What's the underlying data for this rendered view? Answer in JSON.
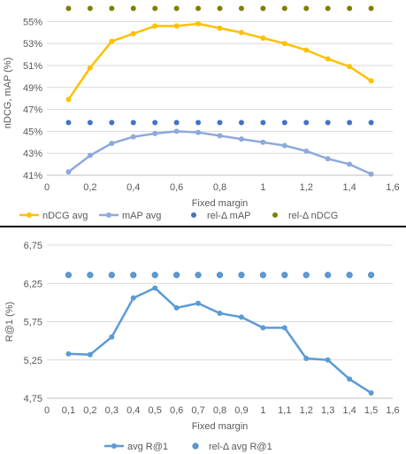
{
  "chart_data": [
    {
      "type": "line",
      "xlabel": "Fixed margin",
      "ylabel": "nDCG, mAP (%)",
      "xlim": [
        0,
        1.6
      ],
      "ylim": [
        41,
        56
      ],
      "x_ticks": [
        "0",
        "0,2",
        "0,4",
        "0,6",
        "0,8",
        "1",
        "1,2",
        "1,4",
        "1,6"
      ],
      "y_ticks": [
        "41%",
        "43%",
        "45%",
        "47%",
        "49%",
        "51%",
        "53%",
        "55%"
      ],
      "grid": true,
      "legend_position": "bottom",
      "colors": {
        "nDCG avg": "#FFC000",
        "mAP avg": "#8EA9DB",
        "rel-Δ mAP": "#4472C4",
        "rel-Δ nDCG": "#7F7F00"
      },
      "x": [
        0.1,
        0.2,
        0.3,
        0.4,
        0.5,
        0.6,
        0.7,
        0.8,
        0.9,
        1.0,
        1.1,
        1.2,
        1.3,
        1.4,
        1.5
      ],
      "series": [
        {
          "name": "nDCG avg",
          "style": "line",
          "values": [
            47.9,
            50.8,
            53.2,
            53.9,
            54.6,
            54.6,
            54.8,
            54.4,
            54.0,
            53.5,
            53.0,
            52.4,
            51.6,
            50.9,
            49.6
          ]
        },
        {
          "name": "mAP avg",
          "style": "line",
          "values": [
            41.3,
            42.8,
            43.9,
            44.5,
            44.8,
            45.0,
            44.9,
            44.6,
            44.3,
            44.0,
            43.7,
            43.2,
            42.5,
            42.0,
            41.1
          ]
        },
        {
          "name": "rel-Δ mAP",
          "style": "scatter",
          "values": [
            45.8,
            45.8,
            45.8,
            45.8,
            45.8,
            45.8,
            45.8,
            45.8,
            45.8,
            45.8,
            45.8,
            45.8,
            45.8,
            45.8,
            45.8
          ]
        },
        {
          "name": "rel-Δ nDCG",
          "style": "scatter",
          "values": [
            56.2,
            56.2,
            56.2,
            56.2,
            56.2,
            56.2,
            56.2,
            56.2,
            56.2,
            56.2,
            56.2,
            56.2,
            56.2,
            56.2,
            56.2
          ]
        }
      ]
    },
    {
      "type": "line",
      "xlabel": "Fixed margin",
      "ylabel": "R@1  (%)",
      "xlim": [
        0,
        1.6
      ],
      "ylim": [
        4.75,
        6.75
      ],
      "x_ticks": [
        "0",
        "0,1",
        "0,2",
        "0,3",
        "0,4",
        "0,5",
        "0,6",
        "0,7",
        "0,8",
        "0,9",
        "1",
        "1,1",
        "1,2",
        "1,3",
        "1,4",
        "1,5",
        "1,6"
      ],
      "y_ticks": [
        "4,75",
        "5,25",
        "5,75",
        "6,25",
        "6,75"
      ],
      "grid": true,
      "legend_position": "bottom",
      "colors": {
        "avg R@1": "#5B9BD5",
        "rel-Δ avg R@1": "#5B9BD5"
      },
      "x": [
        0.1,
        0.2,
        0.3,
        0.4,
        0.5,
        0.6,
        0.7,
        0.8,
        0.9,
        1.0,
        1.1,
        1.2,
        1.3,
        1.4,
        1.5
      ],
      "series": [
        {
          "name": "avg R@1",
          "style": "line",
          "values": [
            5.33,
            5.32,
            5.55,
            6.06,
            6.19,
            5.93,
            5.99,
            5.86,
            5.81,
            5.67,
            5.67,
            5.27,
            5.25,
            5.0,
            4.82
          ]
        },
        {
          "name": "rel-Δ avg R@1",
          "style": "scatter",
          "values": [
            6.36,
            6.36,
            6.36,
            6.36,
            6.36,
            6.36,
            6.36,
            6.36,
            6.36,
            6.36,
            6.36,
            6.36,
            6.36,
            6.36,
            6.36
          ]
        }
      ]
    }
  ]
}
